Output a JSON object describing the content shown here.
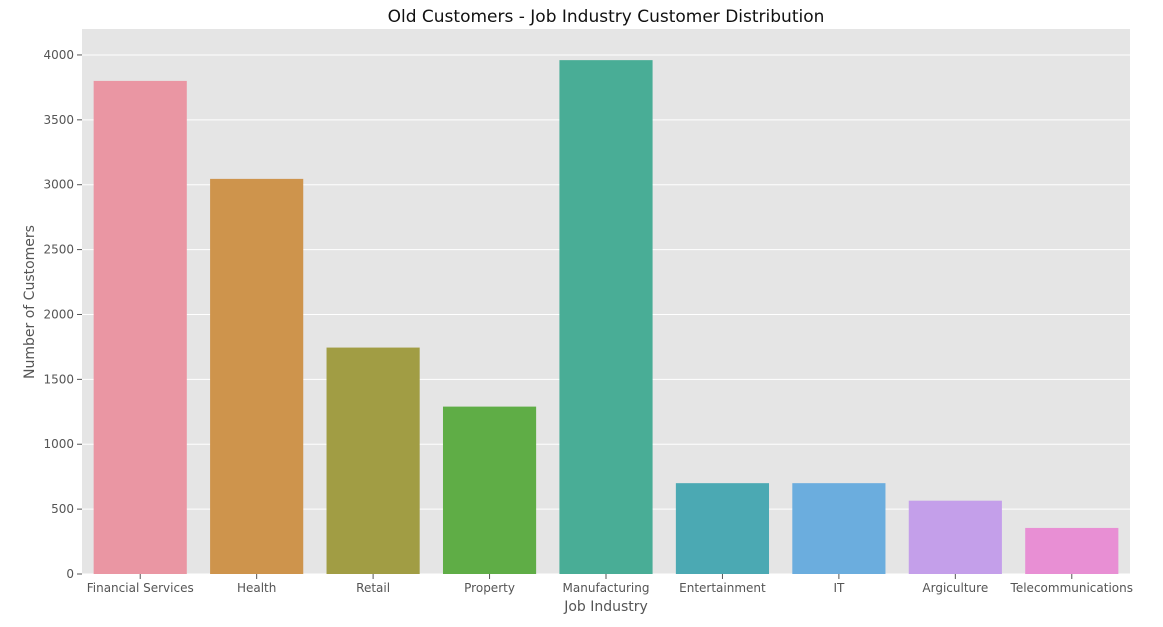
{
  "chart_data": {
    "type": "bar",
    "title": "Old Customers - Job Industry Customer Distribution",
    "xlabel": "Job Industry",
    "ylabel": "Number of Customers",
    "categories": [
      "Financial Services",
      "Health",
      "Retail",
      "Property",
      "Manufacturing",
      "Entertainment",
      "IT",
      "Argiculture",
      "Telecommunications"
    ],
    "values": [
      3800,
      3045,
      1745,
      1290,
      3960,
      700,
      700,
      565,
      355
    ],
    "colors": [
      "#ea96a3",
      "#ce944c",
      "#a19d44",
      "#5fad46",
      "#49ad96",
      "#4ba9b3",
      "#6badde",
      "#c49fea",
      "#e88fd4"
    ],
    "ylim": [
      0,
      4200
    ],
    "yticks": [
      0,
      500,
      1000,
      1500,
      2000,
      2500,
      3000,
      3500,
      4000
    ],
    "grid": true,
    "background": "#e5e5e5",
    "legend": "none"
  }
}
